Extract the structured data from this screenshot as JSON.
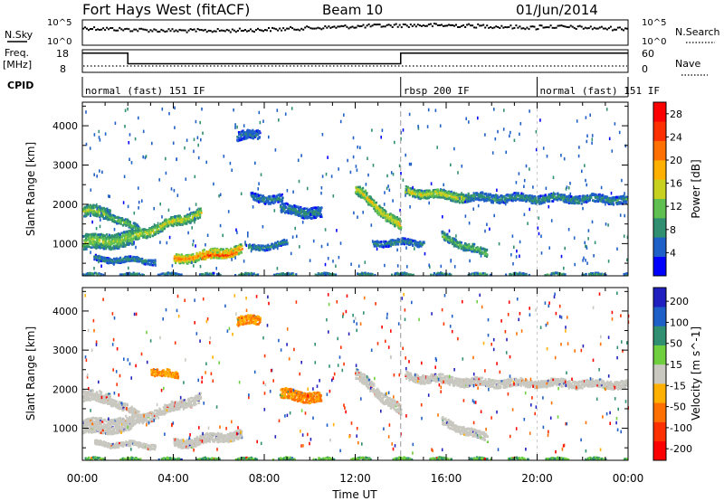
{
  "header": {
    "station": "Fort Hays West (fitACF)",
    "beam": "Beam 10",
    "date": "01/Jun/2014"
  },
  "noise_panel": {
    "left_label": "N.Sky",
    "right_label": "N.Search",
    "tick_hi": "10^5",
    "tick_lo": "10^0",
    "right_tick_hi": "10^5",
    "right_tick_lo": "10^0"
  },
  "freq_panel": {
    "label_top": "Freq.",
    "label_unit": "[MHz]",
    "tick_hi": "18",
    "tick_lo": "8",
    "right_label": "Nave",
    "right_tick_hi": "60",
    "right_tick_lo": "0",
    "freq_steps": [
      {
        "t": 0,
        "mhz": 16.5
      },
      {
        "t": 2.0,
        "mhz": 11.8
      },
      {
        "t": 14.0,
        "mhz": 16.5
      },
      {
        "t": 24.0,
        "mhz": 16.5
      }
    ]
  },
  "cpid": {
    "label": "CPID",
    "segments": [
      {
        "name": "normal (fast) 151 IF",
        "start": 0,
        "end": 14.0
      },
      {
        "name": "rbsp 200 IF",
        "start": 14.0,
        "end": 20.0
      },
      {
        "name": "normal (fast) 151 IF",
        "start": 20.0,
        "end": 24.0
      }
    ]
  },
  "chart_data": [
    {
      "type": "heatmap",
      "title": "Power",
      "ylabel": "Slant Range [km]",
      "xlabel": "Time UT",
      "xlim": [
        0,
        24
      ],
      "ylim": [
        180,
        4600
      ],
      "x_ticks": [
        "00:00",
        "04:00",
        "08:00",
        "12:00",
        "16:00",
        "20:00",
        "00:00"
      ],
      "y_ticks": [
        1000,
        2000,
        3000,
        4000
      ],
      "colorbar": {
        "label": "Power [dB]",
        "ticks": [
          4,
          8,
          12,
          16,
          20,
          24,
          28
        ],
        "range": [
          0,
          30
        ],
        "colors": [
          "#0000ff",
          "#1f5fc8",
          "#2f8f70",
          "#5fbf50",
          "#c8d020",
          "#ffb000",
          "#ff7000",
          "#ff3000",
          "#ff0000"
        ]
      },
      "echo_bands": [
        {
          "t0": 0.0,
          "t1": 1.2,
          "r0": 1850,
          "r1": 1800,
          "w": 280,
          "p": 14
        },
        {
          "t0": 1.0,
          "t1": 2.5,
          "r0": 1800,
          "r1": 1350,
          "w": 180,
          "p": 13
        },
        {
          "t0": 2.2,
          "t1": 5.2,
          "r0": 1200,
          "r1": 1820,
          "w": 240,
          "p": 16
        },
        {
          "t0": 0.0,
          "t1": 2.2,
          "r0": 1050,
          "r1": 1150,
          "w": 380,
          "p": 14
        },
        {
          "t0": 0.5,
          "t1": 3.2,
          "r0": 640,
          "r1": 580,
          "w": 130,
          "p": 9
        },
        {
          "t0": 4.0,
          "t1": 7.0,
          "r0": 620,
          "r1": 880,
          "w": 230,
          "p": 22
        },
        {
          "t0": 5.2,
          "t1": 6.8,
          "r0": 650,
          "r1": 820,
          "w": 140,
          "p": 27
        },
        {
          "t0": 7.3,
          "t1": 9.0,
          "r0": 900,
          "r1": 1040,
          "w": 130,
          "p": 9
        },
        {
          "t0": 7.4,
          "t1": 8.8,
          "r0": 2200,
          "r1": 2150,
          "w": 200,
          "p": 8
        },
        {
          "t0": 8.7,
          "t1": 10.5,
          "r0": 1900,
          "r1": 1800,
          "w": 260,
          "p": 8
        },
        {
          "t0": 12.0,
          "t1": 14.0,
          "r0": 2400,
          "r1": 1450,
          "w": 260,
          "p": 17
        },
        {
          "t0": 14.2,
          "t1": 17.0,
          "r0": 2350,
          "r1": 2200,
          "w": 220,
          "p": 16
        },
        {
          "t0": 16.8,
          "t1": 24.0,
          "r0": 2200,
          "r1": 2150,
          "w": 200,
          "p": 9
        },
        {
          "t0": 15.8,
          "t1": 17.8,
          "r0": 1200,
          "r1": 750,
          "w": 200,
          "p": 12
        },
        {
          "t0": 12.8,
          "t1": 15.0,
          "r0": 1050,
          "r1": 1050,
          "w": 150,
          "p": 8
        },
        {
          "t0": 6.8,
          "t1": 7.8,
          "r0": 3750,
          "r1": 3800,
          "w": 220,
          "p": 7
        },
        {
          "t0": 0.0,
          "t1": 24.0,
          "r0": 220,
          "r1": 220,
          "w": 60,
          "p": 10
        }
      ]
    },
    {
      "type": "heatmap",
      "title": "Velocity",
      "ylabel": "Slant Range [km]",
      "xlabel": "Time UT",
      "xlim": [
        0,
        24
      ],
      "ylim": [
        180,
        4600
      ],
      "x_ticks": [
        "00:00",
        "04:00",
        "08:00",
        "12:00",
        "16:00",
        "20:00",
        "00:00"
      ],
      "y_ticks": [
        1000,
        2000,
        3000,
        4000
      ],
      "colorbar": {
        "label": "Velocity [m s^-1]",
        "ticks": [
          "200",
          "100",
          "50",
          "15",
          "-15",
          "-50",
          "-100",
          "-200"
        ],
        "colors": [
          "#2020c0",
          "#1f5fc8",
          "#2f8f70",
          "#6fcf3f",
          "#c8c8c0",
          "#ffb000",
          "#ff7000",
          "#ff3000",
          "#ff0000"
        ]
      },
      "echo_bands": [
        {
          "t0": 0.0,
          "t1": 1.2,
          "r0": 1850,
          "r1": 1800,
          "w": 280,
          "v": 0
        },
        {
          "t0": 1.0,
          "t1": 2.5,
          "r0": 1800,
          "r1": 1350,
          "w": 180,
          "v": 0
        },
        {
          "t0": 2.2,
          "t1": 5.2,
          "r0": 1200,
          "r1": 1820,
          "w": 240,
          "v": 0
        },
        {
          "t0": 0.0,
          "t1": 2.2,
          "r0": 1050,
          "r1": 1150,
          "w": 380,
          "v": 0
        },
        {
          "t0": 0.5,
          "t1": 3.2,
          "r0": 640,
          "r1": 580,
          "w": 130,
          "v": 0
        },
        {
          "t0": 4.0,
          "t1": 7.0,
          "r0": 620,
          "r1": 880,
          "w": 230,
          "v": 0
        },
        {
          "t0": 8.7,
          "t1": 10.5,
          "r0": 1900,
          "r1": 1800,
          "w": 260,
          "v": -35
        },
        {
          "t0": 3.0,
          "t1": 4.2,
          "r0": 2500,
          "r1": 2350,
          "w": 180,
          "v": -30
        },
        {
          "t0": 12.0,
          "t1": 14.0,
          "r0": 2400,
          "r1": 1450,
          "w": 260,
          "v": 0
        },
        {
          "t0": 14.2,
          "t1": 17.0,
          "r0": 2350,
          "r1": 2200,
          "w": 220,
          "v": 0
        },
        {
          "t0": 16.8,
          "t1": 24.0,
          "r0": 2200,
          "r1": 2150,
          "w": 200,
          "v": 0
        },
        {
          "t0": 15.8,
          "t1": 17.8,
          "r0": 1200,
          "r1": 750,
          "w": 200,
          "v": 0
        },
        {
          "t0": 6.8,
          "t1": 7.8,
          "r0": 3750,
          "r1": 3800,
          "w": 220,
          "v": -30
        },
        {
          "t0": 0.0,
          "t1": 24.0,
          "r0": 220,
          "r1": 220,
          "w": 60,
          "v": 30
        }
      ]
    }
  ]
}
